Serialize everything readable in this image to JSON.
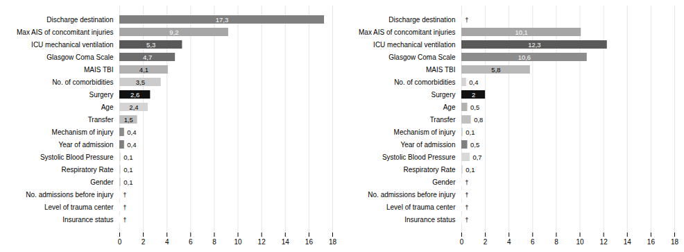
{
  "chart_data": [
    {
      "type": "bar",
      "orientation": "horizontal",
      "categories": [
        "Discharge destination",
        "Max AIS of concomitant injuries",
        "ICU mechanical ventilation",
        "Glasgow Coma Scale",
        "MAIS TBI",
        "No. of comorbidities",
        "Surgery",
        "Age",
        "Transfer",
        "Mechanism of injury",
        "Year of admission",
        "Systolic Blood Pressure",
        "Respiratory Rate",
        "Gender",
        "No. admissions before injury",
        "Level of trauma center",
        "Insurance status"
      ],
      "values": [
        17.3,
        9.2,
        5.3,
        4.7,
        4.1,
        3.5,
        2.6,
        2.4,
        1.5,
        0.4,
        0.4,
        0.1,
        0.1,
        0.1,
        0.05,
        0.05,
        0.05
      ],
      "value_labels": [
        "17,3",
        "9,2",
        "5,3",
        "4,7",
        "4,1",
        "3,5",
        "2,6",
        "2,4",
        "1,5",
        "0,4",
        "0,4",
        "0,1",
        "0,1",
        "0,1",
        "†",
        "†",
        "†"
      ],
      "colors": [
        "#7f7f7f",
        "#a6a6a6",
        "#595959",
        "#6d6d6d",
        "#b2b2b2",
        "#cccccc",
        "#111111",
        "#d4d4d4",
        "#bfbfbf",
        "#8c8c8c",
        "#7f7f7f",
        "#d9d9d9",
        "#d4d4d4",
        "#cccccc",
        "#ffffff",
        "#ffffff",
        "#ffffff"
      ],
      "xlim": [
        0,
        18
      ],
      "xticks": [
        0,
        2,
        4,
        6,
        8,
        10,
        12,
        14,
        16,
        18
      ],
      "grid": true,
      "data_labels": true
    },
    {
      "type": "bar",
      "orientation": "horizontal",
      "categories": [
        "Discharge destination",
        "Max AIS of concomitant injuries",
        "ICU mechanical ventilation",
        "Glasgow Coma Scale",
        "MAIS TBI",
        "No. of comorbidities",
        "Surgery",
        "Age",
        "Transfer",
        "Mechanism of injury",
        "Year of admission",
        "Systolic Blood Pressure",
        "Respiratory Rate",
        "Gender",
        "No. admissions before injury",
        "Level of trauma center",
        "Insurance status"
      ],
      "values": [
        0.05,
        10.1,
        12.3,
        10.6,
        5.8,
        0.4,
        2.0,
        0.5,
        0.8,
        0.1,
        0.5,
        0.7,
        0.1,
        0.05,
        0.05,
        0.05,
        0.05
      ],
      "value_labels": [
        "†",
        "10,1",
        "12,3",
        "10,6",
        "5,8",
        "0,4",
        "2",
        "0,5",
        "0,8",
        "0,1",
        "0,5",
        "0,7",
        "0,1",
        "†",
        "†",
        "†",
        "†"
      ],
      "colors": [
        "#ffffff",
        "#a6a6a6",
        "#595959",
        "#8c8c8c",
        "#b8b8b8",
        "#d4d4d4",
        "#111111",
        "#b2b2b2",
        "#c0c0c0",
        "#cccccc",
        "#7f7f7f",
        "#d9d9d9",
        "#d4d4d4",
        "#ffffff",
        "#ffffff",
        "#ffffff",
        "#ffffff"
      ],
      "xlim": [
        0,
        18
      ],
      "xticks": [
        0,
        2,
        4,
        6,
        8,
        10,
        12,
        14,
        16,
        18
      ],
      "grid": true,
      "data_labels": true
    }
  ]
}
